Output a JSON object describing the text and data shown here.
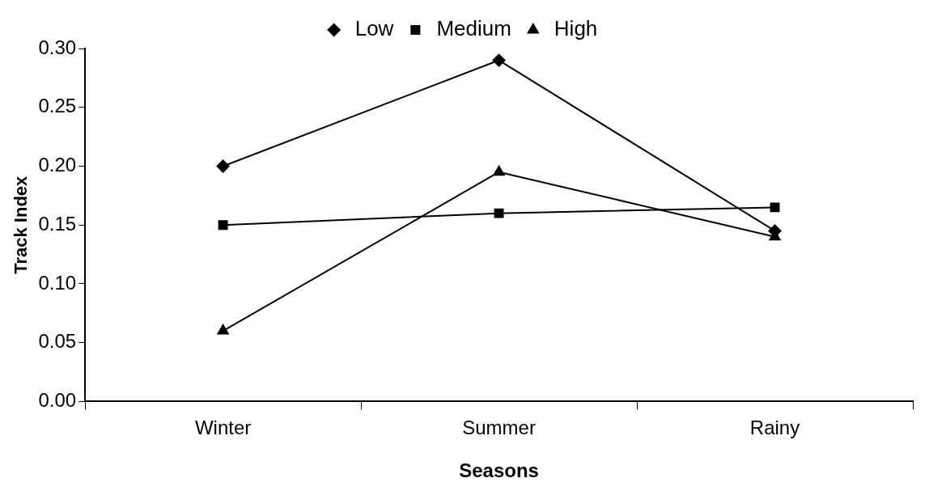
{
  "chart_data": {
    "type": "line",
    "xlabel": "Seasons",
    "ylabel": "Track Index",
    "categories": [
      "Winter",
      "Summer",
      "Rainy"
    ],
    "series": [
      {
        "name": "Low",
        "color": "#000000",
        "marker": "diamond",
        "values": [
          0.2,
          0.29,
          0.145
        ]
      },
      {
        "name": "Medium",
        "color": "#000000",
        "marker": "square",
        "values": [
          0.15,
          0.16,
          0.165
        ]
      },
      {
        "name": "High",
        "color": "#000000",
        "marker": "triangle",
        "values": [
          0.06,
          0.195,
          0.14
        ]
      }
    ],
    "ylim": [
      0,
      0.3
    ],
    "yticks": [
      {
        "value": 0,
        "label": "0.00"
      },
      {
        "value": 0.05,
        "label": "0.05"
      },
      {
        "value": 0.1,
        "label": "0.10"
      },
      {
        "value": 0.15,
        "label": "0.15"
      },
      {
        "value": 0.2,
        "label": "0.20"
      },
      {
        "value": 0.25,
        "label": "0.25"
      },
      {
        "value": 0.3,
        "label": "0.30"
      }
    ],
    "grid": false,
    "legend": "top",
    "line_style": "solid"
  }
}
